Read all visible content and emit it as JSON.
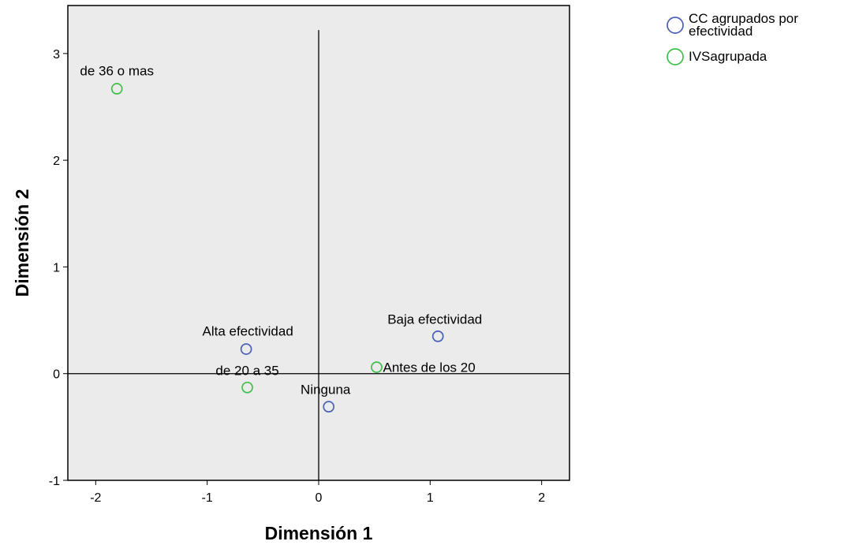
{
  "chart_data": {
    "type": "scatter",
    "xlabel": "Dimensión 1",
    "ylabel": "Dimensión 2",
    "xlim": [
      -2.25,
      2.25
    ],
    "ylim": [
      -1.0,
      3.45
    ],
    "xticks": [
      -2,
      -1,
      0,
      1,
      2
    ],
    "yticks": [
      -1,
      0,
      1,
      2,
      3
    ],
    "reference_lines": {
      "x": 0,
      "y": 0
    },
    "grid": false,
    "legend_placement": "top-right outside",
    "series": [
      {
        "name": "CC agrupados por efectividad",
        "legend_lines": [
          "CC agrupados por",
          "efectividad"
        ],
        "color": "#4a5fb5",
        "points": [
          {
            "label": "Alta efectividad",
            "x": -0.65,
            "y": 0.23
          },
          {
            "label": "Baja efectividad",
            "x": 1.07,
            "y": 0.35
          },
          {
            "label": "Ninguna",
            "x": 0.09,
            "y": -0.31
          }
        ]
      },
      {
        "name": "IVSagrupada",
        "legend_lines": [
          "IVSagrupada"
        ],
        "color": "#3fbf4a",
        "points": [
          {
            "label": "de 36 o mas",
            "x": -1.81,
            "y": 2.67
          },
          {
            "label": "de 20 a 35",
            "x": -0.64,
            "y": -0.13
          },
          {
            "label": "Antes de los 20",
            "x": 0.52,
            "y": 0.06
          }
        ]
      }
    ]
  },
  "colors": {
    "plot_background": "#ebebeb",
    "frame": "#000000"
  }
}
